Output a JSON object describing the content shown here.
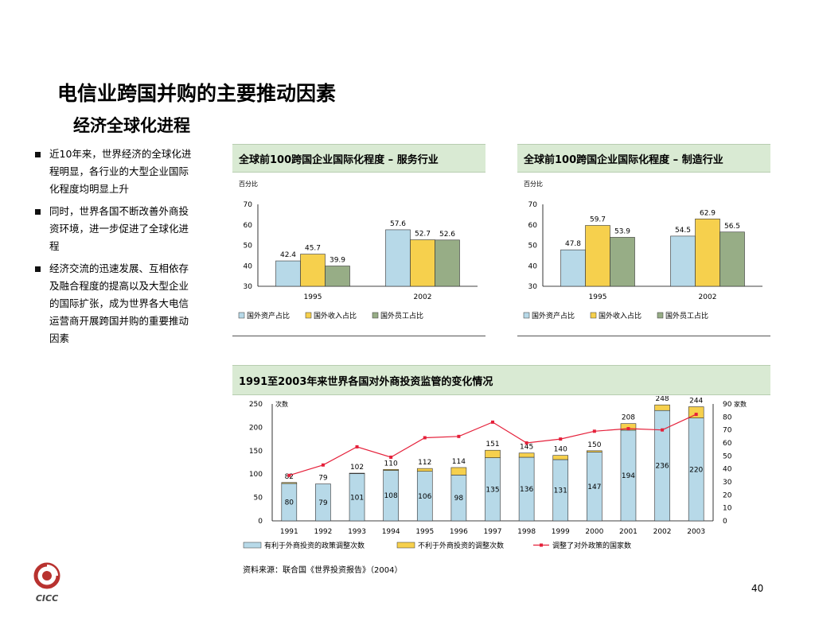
{
  "page": {
    "title": "电信业跨国并购的主要推动因素",
    "subtitle": "经济全球化进程",
    "bullets": [
      "近10年来，世界经济的全球化进程明显，各行业的大型企业国际化程度均明显上升",
      "同时，世界各国不断改善外商投资环境，进一步促进了全球化进程",
      "经济交流的迅速发展、互相依存及融合程度的提高以及大型企业的国际扩张，成为世界各大电信运营商开展跨国并购的重要推动因素"
    ],
    "source": "资料来源：联合国《世界投资报告》（2004）",
    "page_number": "40",
    "logo_text": "CICC"
  },
  "colors": {
    "blue": "#b7d9e8",
    "yellow": "#f6d04d",
    "green": "#97ad86",
    "line": "#e5203a",
    "panel_bg": "#d9ead3"
  },
  "chart_data": [
    {
      "type": "bar",
      "title": "全球前100跨国企业国际化程度 – 服务行业",
      "unit_label": "百分比",
      "categories": [
        "1995",
        "2002"
      ],
      "series": [
        {
          "name": "国外资产占比",
          "values": [
            42.4,
            57.6
          ]
        },
        {
          "name": "国外收入占比",
          "values": [
            45.7,
            52.7
          ]
        },
        {
          "name": "国外员工占比",
          "values": [
            39.9,
            52.6
          ]
        }
      ],
      "ylim": [
        30,
        70
      ],
      "yticks": [
        30,
        40,
        50,
        60,
        70
      ],
      "legend": "bottom"
    },
    {
      "type": "bar",
      "title": "全球前100跨国企业国际化程度 – 制造行业",
      "unit_label": "百分比",
      "categories": [
        "1995",
        "2002"
      ],
      "series": [
        {
          "name": "国外资产占比",
          "values": [
            47.8,
            54.5
          ]
        },
        {
          "name": "国外收入占比",
          "values": [
            59.7,
            62.9
          ]
        },
        {
          "name": "国外员工占比",
          "values": [
            53.9,
            56.5
          ]
        }
      ],
      "ylim": [
        30,
        70
      ],
      "yticks": [
        30,
        40,
        50,
        60,
        70
      ],
      "legend": "bottom"
    },
    {
      "type": "bar",
      "stacked": true,
      "title": "1991至2003年来世界各国对外商投资监管的变化情况",
      "ylabel": "次数",
      "y2label": "家数",
      "categories": [
        "1991",
        "1992",
        "1993",
        "1994",
        "1995",
        "1996",
        "1997",
        "1998",
        "1999",
        "2000",
        "2001",
        "2002",
        "2003"
      ],
      "series": [
        {
          "name": "有利于外商投资的政策调整次数",
          "values": [
            80,
            79,
            101,
            108,
            106,
            98,
            135,
            136,
            131,
            147,
            194,
            236,
            220
          ]
        },
        {
          "name": "不利于外商投资的调整次数",
          "values": [
            2,
            0,
            1,
            2,
            6,
            16,
            16,
            9,
            9,
            3,
            14,
            12,
            24
          ]
        }
      ],
      "totals": [
        82,
        79,
        102,
        110,
        112,
        114,
        151,
        145,
        140,
        150,
        208,
        248,
        244
      ],
      "line_series": {
        "name": "调整了对外政策的国家数",
        "axis": "right",
        "values": [
          35,
          43,
          57,
          49,
          64,
          65,
          76,
          60,
          63,
          69,
          71,
          70,
          82
        ]
      },
      "ylim": [
        0,
        250
      ],
      "yticks": [
        0,
        50,
        100,
        150,
        200,
        250
      ],
      "y2lim": [
        0,
        90
      ],
      "y2ticks": [
        0,
        10,
        20,
        30,
        40,
        50,
        60,
        70,
        80,
        90
      ],
      "legend": "bottom"
    }
  ]
}
